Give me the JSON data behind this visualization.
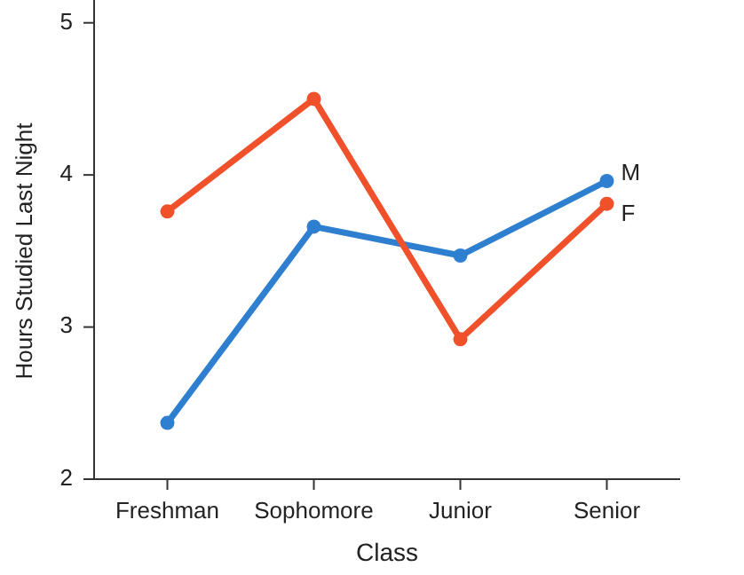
{
  "chart_data": {
    "type": "line",
    "xlabel": "Class",
    "ylabel": "Hours Studied Last Night",
    "categories": [
      "Freshman",
      "Sophomore",
      "Junior",
      "Senior"
    ],
    "series": [
      {
        "name": "M",
        "color": "#2e7fd0",
        "values": [
          2.37,
          3.66,
          3.47,
          3.96
        ]
      },
      {
        "name": "F",
        "color": "#f0502a",
        "values": [
          3.76,
          4.5,
          2.92,
          3.81
        ]
      }
    ],
    "ylim": [
      2,
      5.15
    ],
    "yticks": [
      2,
      3,
      4,
      5
    ],
    "grid": false,
    "marker": "circle",
    "line_style": "solid"
  }
}
